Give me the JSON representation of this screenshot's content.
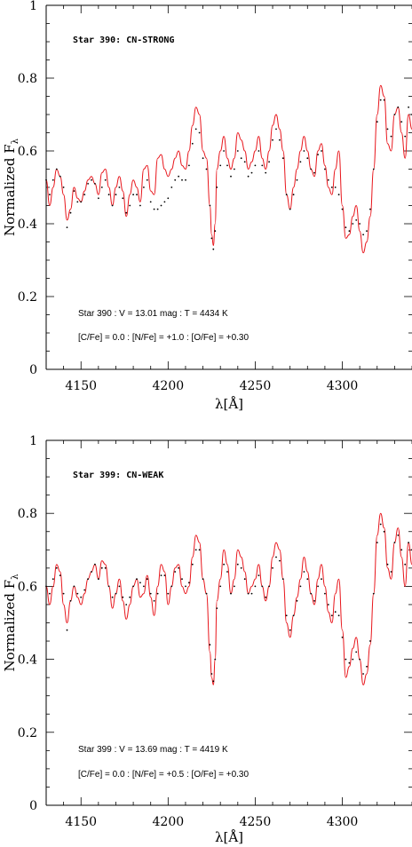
{
  "chart_data": [
    {
      "type": "line",
      "title": "Star 390: CN-STRONG",
      "xlabel": "λ[Å]",
      "ylabel": "Normalized F",
      "ylabel_sub": "λ",
      "xlim": [
        4130,
        4340
      ],
      "ylim": [
        0,
        1
      ],
      "xticks": [
        4150,
        4200,
        4250,
        4300
      ],
      "yticks": [
        0,
        0.2,
        0.4,
        0.6,
        0.8,
        1
      ],
      "notes": [
        "Star 390 : V = 13.01 mag : T = 4434 K",
        "[C/Fe] = 0.0 : [N/Fe] = +1.0 : [O/Fe] = +0.30"
      ],
      "series": [
        {
          "role": "model",
          "color": "#e8151b",
          "x": [
            4130,
            4132,
            4134,
            4136,
            4138,
            4140,
            4142,
            4144,
            4146,
            4148,
            4150,
            4152,
            4154,
            4156,
            4158,
            4160,
            4162,
            4164,
            4166,
            4168,
            4170,
            4172,
            4174,
            4176,
            4178,
            4180,
            4182,
            4184,
            4186,
            4188,
            4190,
            4192,
            4194,
            4196,
            4198,
            4200,
            4202,
            4204,
            4206,
            4208,
            4210,
            4212,
            4214,
            4216,
            4218,
            4220,
            4222,
            4224,
            4225,
            4226,
            4227,
            4228,
            4230,
            4232,
            4234,
            4236,
            4238,
            4240,
            4242,
            4244,
            4246,
            4248,
            4250,
            4252,
            4254,
            4256,
            4258,
            4260,
            4262,
            4264,
            4266,
            4268,
            4270,
            4272,
            4274,
            4276,
            4278,
            4280,
            4282,
            4284,
            4286,
            4288,
            4290,
            4292,
            4294,
            4296,
            4298,
            4300,
            4302,
            4304,
            4306,
            4308,
            4310,
            4312,
            4314,
            4316,
            4318,
            4320,
            4322,
            4324,
            4326,
            4328,
            4330,
            4332,
            4334,
            4336,
            4338,
            4340
          ],
          "y": [
            0.52,
            0.45,
            0.5,
            0.55,
            0.53,
            0.48,
            0.41,
            0.44,
            0.5,
            0.47,
            0.46,
            0.49,
            0.52,
            0.53,
            0.51,
            0.48,
            0.54,
            0.55,
            0.5,
            0.45,
            0.5,
            0.53,
            0.49,
            0.42,
            0.48,
            0.52,
            0.5,
            0.46,
            0.55,
            0.56,
            0.49,
            0.48,
            0.58,
            0.59,
            0.55,
            0.53,
            0.55,
            0.58,
            0.6,
            0.56,
            0.55,
            0.6,
            0.67,
            0.72,
            0.7,
            0.6,
            0.58,
            0.45,
            0.37,
            0.34,
            0.4,
            0.55,
            0.6,
            0.64,
            0.58,
            0.55,
            0.58,
            0.65,
            0.63,
            0.6,
            0.55,
            0.57,
            0.6,
            0.64,
            0.58,
            0.55,
            0.6,
            0.67,
            0.7,
            0.66,
            0.6,
            0.48,
            0.44,
            0.5,
            0.55,
            0.6,
            0.64,
            0.6,
            0.55,
            0.53,
            0.6,
            0.62,
            0.56,
            0.5,
            0.48,
            0.55,
            0.6,
            0.45,
            0.36,
            0.37,
            0.42,
            0.45,
            0.38,
            0.32,
            0.35,
            0.42,
            0.55,
            0.7,
            0.78,
            0.75,
            0.62,
            0.6,
            0.7,
            0.72,
            0.65,
            0.58,
            0.7,
            0.66
          ]
        },
        {
          "role": "observed",
          "color": "#000000",
          "x": [
            4130,
            4132,
            4134,
            4136,
            4138,
            4140,
            4142,
            4144,
            4146,
            4148,
            4150,
            4152,
            4154,
            4156,
            4158,
            4160,
            4162,
            4164,
            4166,
            4168,
            4170,
            4172,
            4174,
            4176,
            4178,
            4180,
            4182,
            4184,
            4186,
            4188,
            4190,
            4192,
            4194,
            4196,
            4198,
            4200,
            4202,
            4204,
            4206,
            4208,
            4210,
            4212,
            4214,
            4216,
            4218,
            4220,
            4222,
            4224,
            4225,
            4226,
            4227,
            4228,
            4230,
            4232,
            4234,
            4236,
            4238,
            4240,
            4242,
            4244,
            4246,
            4248,
            4250,
            4252,
            4254,
            4256,
            4258,
            4260,
            4262,
            4264,
            4266,
            4268,
            4270,
            4272,
            4274,
            4276,
            4278,
            4280,
            4282,
            4284,
            4286,
            4288,
            4290,
            4292,
            4294,
            4296,
            4298,
            4300,
            4302,
            4304,
            4306,
            4308,
            4310,
            4312,
            4314,
            4316,
            4318,
            4320,
            4322,
            4324,
            4326,
            4328,
            4330,
            4332,
            4334,
            4336,
            4338,
            4340
          ],
          "y": [
            0.52,
            0.48,
            0.52,
            0.55,
            0.53,
            0.5,
            0.39,
            0.43,
            0.49,
            0.46,
            0.46,
            0.48,
            0.51,
            0.52,
            0.51,
            0.47,
            0.5,
            0.52,
            0.48,
            0.45,
            0.48,
            0.5,
            0.47,
            0.43,
            0.45,
            0.48,
            0.48,
            0.45,
            0.5,
            0.52,
            0.46,
            0.44,
            0.44,
            0.45,
            0.46,
            0.47,
            0.5,
            0.52,
            0.53,
            0.52,
            0.52,
            0.56,
            0.62,
            0.66,
            0.65,
            0.58,
            0.55,
            0.45,
            0.36,
            0.33,
            0.38,
            0.5,
            0.56,
            0.6,
            0.56,
            0.53,
            0.55,
            0.6,
            0.58,
            0.57,
            0.53,
            0.54,
            0.56,
            0.6,
            0.56,
            0.54,
            0.57,
            0.63,
            0.66,
            0.63,
            0.58,
            0.48,
            0.44,
            0.48,
            0.52,
            0.57,
            0.6,
            0.58,
            0.55,
            0.54,
            0.59,
            0.6,
            0.55,
            0.52,
            0.5,
            0.5,
            0.48,
            0.44,
            0.39,
            0.38,
            0.4,
            0.41,
            0.4,
            0.37,
            0.38,
            0.44,
            0.55,
            0.68,
            0.74,
            0.74,
            0.66,
            0.64,
            0.7,
            0.72,
            0.68,
            0.64,
            0.72,
            0.7
          ]
        }
      ]
    },
    {
      "type": "line",
      "title": "Star 399: CN-WEAK",
      "xlabel": "λ[Å]",
      "ylabel": "Normalized F",
      "ylabel_sub": "λ",
      "xlim": [
        4130,
        4340
      ],
      "ylim": [
        0,
        1
      ],
      "xticks": [
        4150,
        4200,
        4250,
        4300
      ],
      "yticks": [
        0,
        0.2,
        0.4,
        0.6,
        0.8,
        1
      ],
      "notes": [
        "Star 399 : V = 13.69 mag : T = 4419 K",
        "[C/Fe] = 0.0 : [N/Fe] = +0.5 : [O/Fe] = +0.30"
      ],
      "series": [
        {
          "role": "model",
          "color": "#e8151b",
          "x": [
            4130,
            4132,
            4134,
            4136,
            4138,
            4140,
            4142,
            4144,
            4146,
            4148,
            4150,
            4152,
            4154,
            4156,
            4158,
            4160,
            4162,
            4164,
            4166,
            4168,
            4170,
            4172,
            4174,
            4176,
            4178,
            4180,
            4182,
            4184,
            4186,
            4188,
            4190,
            4192,
            4194,
            4196,
            4198,
            4200,
            4202,
            4204,
            4206,
            4208,
            4210,
            4212,
            4214,
            4216,
            4218,
            4220,
            4222,
            4224,
            4225,
            4226,
            4227,
            4228,
            4230,
            4232,
            4234,
            4236,
            4238,
            4240,
            4242,
            4244,
            4246,
            4248,
            4250,
            4252,
            4254,
            4256,
            4258,
            4260,
            4262,
            4264,
            4266,
            4268,
            4270,
            4272,
            4274,
            4276,
            4278,
            4280,
            4282,
            4284,
            4286,
            4288,
            4290,
            4292,
            4294,
            4296,
            4298,
            4300,
            4302,
            4304,
            4306,
            4308,
            4310,
            4312,
            4314,
            4316,
            4318,
            4320,
            4322,
            4324,
            4326,
            4328,
            4330,
            4332,
            4334,
            4336,
            4338,
            4340
          ],
          "y": [
            0.6,
            0.55,
            0.6,
            0.66,
            0.64,
            0.55,
            0.5,
            0.56,
            0.6,
            0.57,
            0.55,
            0.58,
            0.62,
            0.64,
            0.66,
            0.62,
            0.67,
            0.66,
            0.6,
            0.54,
            0.58,
            0.62,
            0.56,
            0.51,
            0.55,
            0.6,
            0.62,
            0.57,
            0.58,
            0.63,
            0.57,
            0.52,
            0.6,
            0.66,
            0.64,
            0.55,
            0.6,
            0.65,
            0.66,
            0.6,
            0.58,
            0.6,
            0.68,
            0.74,
            0.72,
            0.62,
            0.58,
            0.42,
            0.35,
            0.33,
            0.4,
            0.56,
            0.62,
            0.7,
            0.66,
            0.58,
            0.62,
            0.7,
            0.68,
            0.64,
            0.58,
            0.6,
            0.62,
            0.66,
            0.6,
            0.56,
            0.6,
            0.68,
            0.72,
            0.7,
            0.62,
            0.5,
            0.46,
            0.52,
            0.57,
            0.62,
            0.68,
            0.64,
            0.58,
            0.55,
            0.62,
            0.66,
            0.6,
            0.53,
            0.5,
            0.58,
            0.62,
            0.48,
            0.35,
            0.38,
            0.43,
            0.46,
            0.4,
            0.33,
            0.36,
            0.44,
            0.58,
            0.74,
            0.8,
            0.76,
            0.65,
            0.62,
            0.72,
            0.76,
            0.68,
            0.6,
            0.72,
            0.66
          ]
        },
        {
          "role": "observed",
          "color": "#000000",
          "x": [
            4130,
            4132,
            4134,
            4136,
            4138,
            4140,
            4142,
            4144,
            4146,
            4148,
            4150,
            4152,
            4154,
            4156,
            4158,
            4160,
            4162,
            4164,
            4166,
            4168,
            4170,
            4172,
            4174,
            4176,
            4178,
            4180,
            4182,
            4184,
            4186,
            4188,
            4190,
            4192,
            4194,
            4196,
            4198,
            4200,
            4202,
            4204,
            4206,
            4208,
            4210,
            4212,
            4214,
            4216,
            4218,
            4220,
            4222,
            4224,
            4225,
            4226,
            4227,
            4228,
            4230,
            4232,
            4234,
            4236,
            4238,
            4240,
            4242,
            4244,
            4246,
            4248,
            4250,
            4252,
            4254,
            4256,
            4258,
            4260,
            4262,
            4264,
            4266,
            4268,
            4270,
            4272,
            4274,
            4276,
            4278,
            4280,
            4282,
            4284,
            4286,
            4288,
            4290,
            4292,
            4294,
            4296,
            4298,
            4300,
            4302,
            4304,
            4306,
            4308,
            4310,
            4312,
            4314,
            4316,
            4318,
            4320,
            4322,
            4324,
            4326,
            4328,
            4330,
            4332,
            4334,
            4336,
            4338,
            4340
          ],
          "y": [
            0.6,
            0.58,
            0.62,
            0.65,
            0.63,
            0.58,
            0.48,
            0.56,
            0.6,
            0.58,
            0.57,
            0.59,
            0.62,
            0.64,
            0.66,
            0.62,
            0.65,
            0.65,
            0.6,
            0.57,
            0.58,
            0.6,
            0.57,
            0.55,
            0.57,
            0.6,
            0.62,
            0.61,
            0.6,
            0.62,
            0.58,
            0.56,
            0.58,
            0.63,
            0.63,
            0.58,
            0.6,
            0.64,
            0.65,
            0.62,
            0.6,
            0.61,
            0.66,
            0.7,
            0.7,
            0.62,
            0.58,
            0.44,
            0.36,
            0.34,
            0.4,
            0.54,
            0.6,
            0.66,
            0.64,
            0.58,
            0.6,
            0.66,
            0.65,
            0.62,
            0.58,
            0.58,
            0.6,
            0.63,
            0.6,
            0.57,
            0.6,
            0.65,
            0.68,
            0.67,
            0.62,
            0.52,
            0.48,
            0.52,
            0.56,
            0.6,
            0.64,
            0.62,
            0.58,
            0.56,
            0.6,
            0.62,
            0.58,
            0.55,
            0.52,
            0.53,
            0.52,
            0.46,
            0.4,
            0.39,
            0.4,
            0.42,
            0.4,
            0.36,
            0.38,
            0.45,
            0.58,
            0.72,
            0.77,
            0.75,
            0.66,
            0.64,
            0.72,
            0.74,
            0.7,
            0.66,
            0.72,
            0.7
          ]
        }
      ]
    }
  ]
}
